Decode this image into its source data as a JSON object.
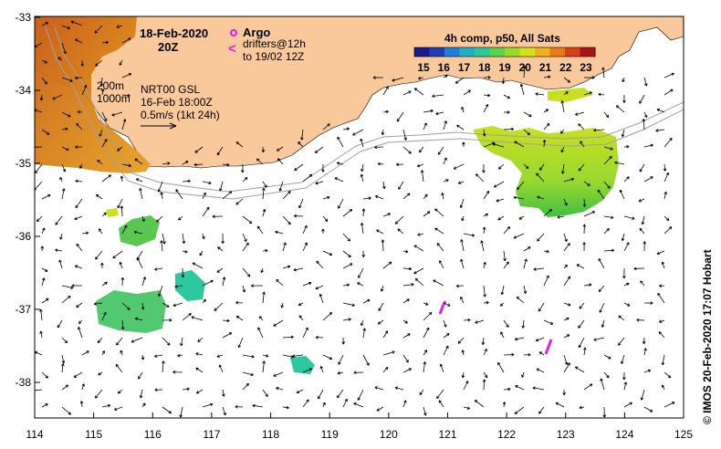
{
  "header": {
    "date": "18-Feb-2020",
    "time": "20Z"
  },
  "legend": {
    "argo_label": "Argo",
    "drifters_line1": "drifters@12h",
    "drifters_line2": "to 19/02 12Z",
    "drifter_symbol": "<"
  },
  "colorbar": {
    "title": "4h comp, p50, All Sats",
    "ticks": [
      "15",
      "16",
      "17",
      "18",
      "19",
      "20",
      "21",
      "22",
      "23"
    ],
    "colors": [
      "#1a1a8c",
      "#1f3fb8",
      "#1f7fd8",
      "#1fb0c8",
      "#2cc89a",
      "#5ad24a",
      "#9ada2a",
      "#d8e01a",
      "#f0b01a",
      "#e87a1a",
      "#d8401a",
      "#a8141a"
    ]
  },
  "annotations": {
    "depth_200": "200m",
    "depth_1000": "1000m",
    "model_line1": "NRT00 GSL",
    "model_line2": "16-Feb 18:00Z",
    "model_line3": "0.5m/s (1kt 24h)"
  },
  "axes": {
    "x_ticks": [
      "114",
      "115",
      "116",
      "117",
      "118",
      "119",
      "120",
      "121",
      "122",
      "123",
      "124",
      "125"
    ],
    "y_ticks": [
      "-33",
      "-34",
      "-35",
      "-36",
      "-37",
      "-38"
    ]
  },
  "credit": "© IMOS 20-Feb-2020 17:07 Hobart",
  "colors": {
    "land": "#f9c89b",
    "arrow": "#000000",
    "marker": "#e020e0",
    "isobath": "#a0a0a0"
  }
}
